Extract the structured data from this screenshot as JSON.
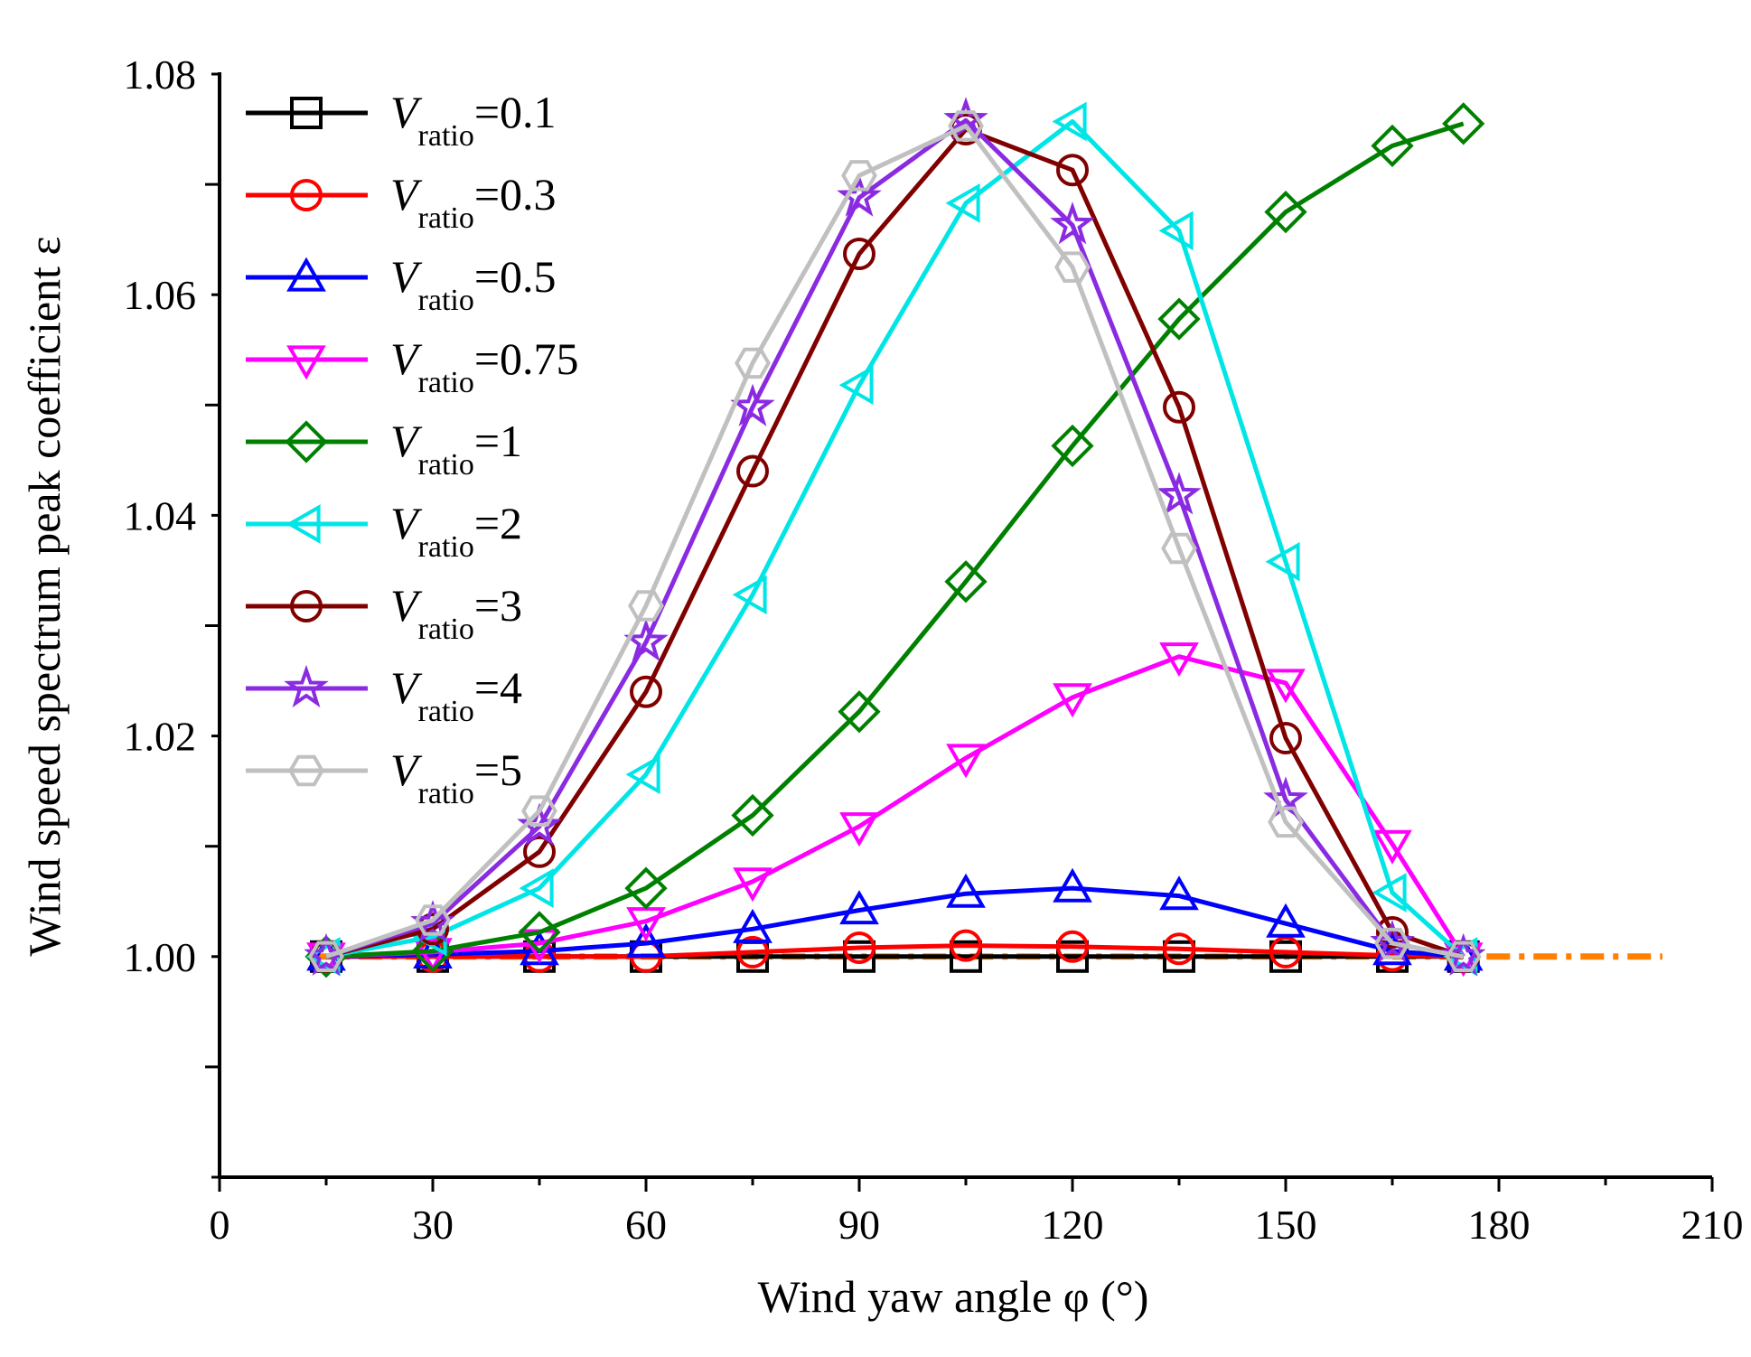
{
  "chart_data": {
    "type": "line",
    "xlabel": "Wind yaw angle φ (°)",
    "ylabel": "Wind speed spectrum peak coefficient ε",
    "xlim": [
      0,
      210
    ],
    "ylim": [
      0.98,
      1.08
    ],
    "xticks": [
      "0",
      "30",
      "60",
      "90",
      "120",
      "150",
      "180",
      "210"
    ],
    "yticks": [
      "1.00",
      "1.02",
      "1.04",
      "1.06",
      "1.08"
    ],
    "legend_position": "top-left",
    "grid": false,
    "x": [
      15,
      30,
      45,
      60,
      75,
      90,
      105,
      120,
      135,
      150,
      165,
      175
    ],
    "series": [
      {
        "name": "V_ratio=0.1",
        "label_main": "V",
        "label_sub": "ratio",
        "label_value": "=0.1",
        "color": "#000000",
        "marker": "square",
        "values": [
          1.0,
          1.0,
          1.0,
          1.0,
          1.0,
          1.0,
          1.0,
          1.0,
          1.0,
          1.0,
          1.0,
          1.0
        ]
      },
      {
        "name": "V_ratio=0.3",
        "label_main": "V",
        "label_sub": "ratio",
        "label_value": "=0.3",
        "color": "#ff0000",
        "marker": "circle",
        "values": [
          1.0,
          1.0,
          1.0,
          1.0,
          1.0004,
          1.0008,
          1.001,
          1.0009,
          1.0007,
          1.0004,
          1.0001,
          1.0
        ]
      },
      {
        "name": "V_ratio=0.5",
        "label_main": "V",
        "label_sub": "ratio",
        "label_value": "=0.5",
        "color": "#0000ff",
        "marker": "triangle-up",
        "values": [
          1.0,
          1.0002,
          1.0005,
          1.0012,
          1.0025,
          1.0042,
          1.0057,
          1.0062,
          1.0055,
          1.003,
          1.0005,
          1.0
        ]
      },
      {
        "name": "V_ratio=0.75",
        "label_main": "V",
        "label_sub": "ratio",
        "label_value": "=0.75",
        "color": "#ff00ff",
        "marker": "triangle-down",
        "values": [
          1.0,
          1.0004,
          1.0012,
          1.0032,
          1.0068,
          1.0118,
          1.018,
          1.0235,
          1.0272,
          1.0248,
          1.0102,
          1.0
        ]
      },
      {
        "name": "V_ratio=1",
        "label_main": "V",
        "label_sub": "ratio",
        "label_value": "=1",
        "color": "#008000",
        "marker": "diamond",
        "values": [
          1.0,
          1.0005,
          1.0022,
          1.0062,
          1.0128,
          1.0222,
          1.034,
          1.0463,
          1.0578,
          1.0675,
          1.0735,
          1.0755
        ]
      },
      {
        "name": "V_ratio=2",
        "label_main": "V",
        "label_sub": "ratio",
        "label_value": "=2",
        "color": "#00e5e5",
        "marker": "triangle-left",
        "values": [
          1.0,
          1.0018,
          1.0062,
          1.0165,
          1.0328,
          1.0518,
          1.0683,
          1.0757,
          1.0658,
          1.0358,
          1.0058,
          1.0
        ]
      },
      {
        "name": "V_ratio=3",
        "label_main": "V",
        "label_sub": "ratio",
        "label_value": "=3",
        "color": "#800000",
        "marker": "circle",
        "values": [
          1.0,
          1.0025,
          1.0095,
          1.024,
          1.044,
          1.0637,
          1.075,
          1.0713,
          1.0498,
          1.0198,
          1.0022,
          1.0
        ]
      },
      {
        "name": "V_ratio=4",
        "label_main": "V",
        "label_sub": "ratio",
        "label_value": "=4",
        "color": "#8a2be2",
        "marker": "star",
        "values": [
          1.0,
          1.003,
          1.0118,
          1.0285,
          1.0498,
          1.0688,
          1.0758,
          1.0663,
          1.0418,
          1.0142,
          1.0012,
          1.0
        ]
      },
      {
        "name": "V_ratio=5",
        "label_main": "V",
        "label_sub": "ratio",
        "label_value": "=5",
        "color": "#c0c0c0",
        "marker": "hexagon",
        "values": [
          1.0,
          1.0033,
          1.0132,
          1.0318,
          1.0538,
          1.0708,
          1.0753,
          1.0625,
          1.037,
          1.0122,
          1.0012,
          1.0
        ]
      }
    ],
    "reference_line": {
      "y": 1.0,
      "color": "#ff8000",
      "style": "dash-dot"
    }
  }
}
